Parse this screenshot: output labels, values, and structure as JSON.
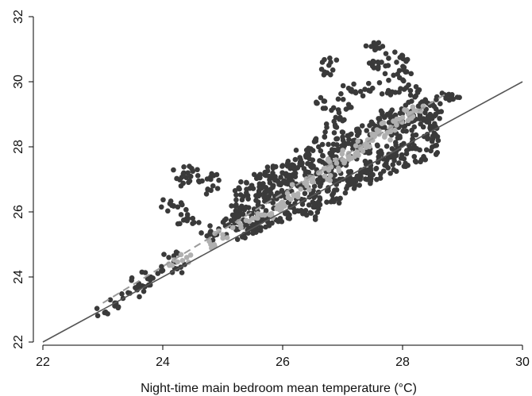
{
  "chart_data": {
    "type": "scatter",
    "title": "",
    "xlabel": "Night-time main bedroom mean temperature (°C)",
    "ylabel": "",
    "xlim": [
      22,
      30
    ],
    "ylim": [
      22,
      32
    ],
    "x_ticks": [
      "22",
      "24",
      "26",
      "28",
      "30"
    ],
    "y_ticks": [
      "22",
      "24",
      "26",
      "28",
      "30",
      "32"
    ],
    "grid": false,
    "legend": "none",
    "colors": {
      "dark_series": "#3a3a3a",
      "light_series": "#b0b0b0",
      "reference_line": "#555555",
      "fit_line": "#9a9a9a",
      "axis": "#000000"
    },
    "series": [
      {
        "style": "dark-points",
        "points": [
          [
            23.05,
            22.9
          ],
          [
            23.2,
            23.2
          ],
          [
            23.45,
            23.5
          ],
          [
            23.6,
            23.8
          ],
          [
            23.8,
            24.0
          ],
          [
            23.7,
            23.7
          ],
          [
            24.0,
            24.2
          ],
          [
            24.1,
            24.6
          ],
          [
            24.3,
            24.3
          ],
          [
            24.15,
            26.2
          ],
          [
            24.25,
            26.15
          ],
          [
            24.4,
            25.8
          ],
          [
            24.5,
            25.8
          ],
          [
            24.35,
            27.2
          ],
          [
            24.5,
            27.25
          ],
          [
            24.45,
            26.95
          ],
          [
            24.6,
            26.95
          ],
          [
            24.8,
            27.0
          ],
          [
            24.75,
            26.7
          ],
          [
            24.8,
            25.4
          ],
          [
            24.9,
            25.3
          ],
          [
            25.1,
            25.6
          ],
          [
            25.2,
            25.9
          ],
          [
            25.3,
            26.1
          ],
          [
            25.5,
            25.6
          ],
          [
            25.7,
            26.6
          ],
          [
            25.9,
            26.4
          ],
          [
            26.0,
            26.9
          ],
          [
            26.1,
            27.1
          ],
          [
            26.2,
            27.3
          ],
          [
            26.2,
            26.0
          ],
          [
            26.3,
            27.6
          ],
          [
            26.4,
            27.9
          ],
          [
            26.5,
            27.4
          ],
          [
            26.5,
            26.3
          ],
          [
            26.6,
            28.0
          ],
          [
            26.7,
            28.3
          ],
          [
            26.7,
            29.4
          ],
          [
            26.7,
            30.3
          ],
          [
            26.8,
            30.6
          ],
          [
            26.85,
            29.2
          ],
          [
            26.9,
            28.6
          ],
          [
            26.95,
            27.0
          ],
          [
            27.0,
            28.8
          ],
          [
            27.1,
            29.3
          ],
          [
            27.1,
            29.8
          ],
          [
            27.2,
            28.2
          ],
          [
            27.3,
            29.7
          ],
          [
            27.3,
            28.0
          ],
          [
            27.4,
            27.2
          ],
          [
            27.5,
            29.8
          ],
          [
            27.5,
            30.5
          ],
          [
            27.55,
            31.0
          ],
          [
            27.6,
            31.2
          ],
          [
            27.65,
            30.6
          ],
          [
            27.7,
            28.6
          ],
          [
            27.75,
            29.0
          ],
          [
            27.8,
            29.6
          ],
          [
            27.85,
            30.2
          ],
          [
            27.9,
            30.6
          ],
          [
            28.0,
            30.8
          ],
          [
            28.05,
            30.3
          ],
          [
            28.1,
            29.9
          ],
          [
            28.15,
            29.4
          ],
          [
            28.25,
            29.7
          ],
          [
            28.3,
            28.7
          ],
          [
            28.5,
            29.3
          ],
          [
            28.55,
            29.0
          ],
          [
            28.7,
            29.6
          ],
          [
            28.8,
            29.55
          ],
          [
            27.9,
            27.9
          ],
          [
            27.6,
            27.6
          ],
          [
            27.2,
            27.0
          ],
          [
            26.9,
            26.4
          ],
          [
            26.6,
            26.1
          ],
          [
            26.4,
            25.9
          ],
          [
            27.0,
            28.3
          ],
          [
            26.8,
            27.6
          ],
          [
            27.4,
            28.5
          ],
          [
            27.8,
            28.9
          ]
        ]
      },
      {
        "style": "light-points",
        "points": [
          [
            24.1,
            24.4
          ],
          [
            24.4,
            24.6
          ],
          [
            24.8,
            25.0
          ],
          [
            25.0,
            25.3
          ],
          [
            25.3,
            25.6
          ],
          [
            25.5,
            25.8
          ],
          [
            25.7,
            25.9
          ],
          [
            25.9,
            26.1
          ],
          [
            26.0,
            26.3
          ],
          [
            26.2,
            26.5
          ],
          [
            26.3,
            26.7
          ],
          [
            26.4,
            26.9
          ],
          [
            26.5,
            27.0
          ],
          [
            26.6,
            27.2
          ],
          [
            26.7,
            27.1
          ],
          [
            26.8,
            27.4
          ],
          [
            26.9,
            27.5
          ],
          [
            27.0,
            27.6
          ],
          [
            27.1,
            27.8
          ],
          [
            27.2,
            27.7
          ],
          [
            27.3,
            28.0
          ],
          [
            27.4,
            28.1
          ],
          [
            27.5,
            28.2
          ],
          [
            27.6,
            28.4
          ],
          [
            27.7,
            28.3
          ],
          [
            27.8,
            28.6
          ],
          [
            27.9,
            28.7
          ],
          [
            28.0,
            28.9
          ],
          [
            28.1,
            29.0
          ],
          [
            28.3,
            29.1
          ]
        ]
      }
    ],
    "lines": [
      {
        "style": "solid-reference",
        "from": [
          22,
          22
        ],
        "to": [
          30,
          30
        ]
      },
      {
        "style": "dashed-fit",
        "from": [
          23.0,
          23.2
        ],
        "to": [
          28.7,
          29.6
        ]
      }
    ]
  }
}
